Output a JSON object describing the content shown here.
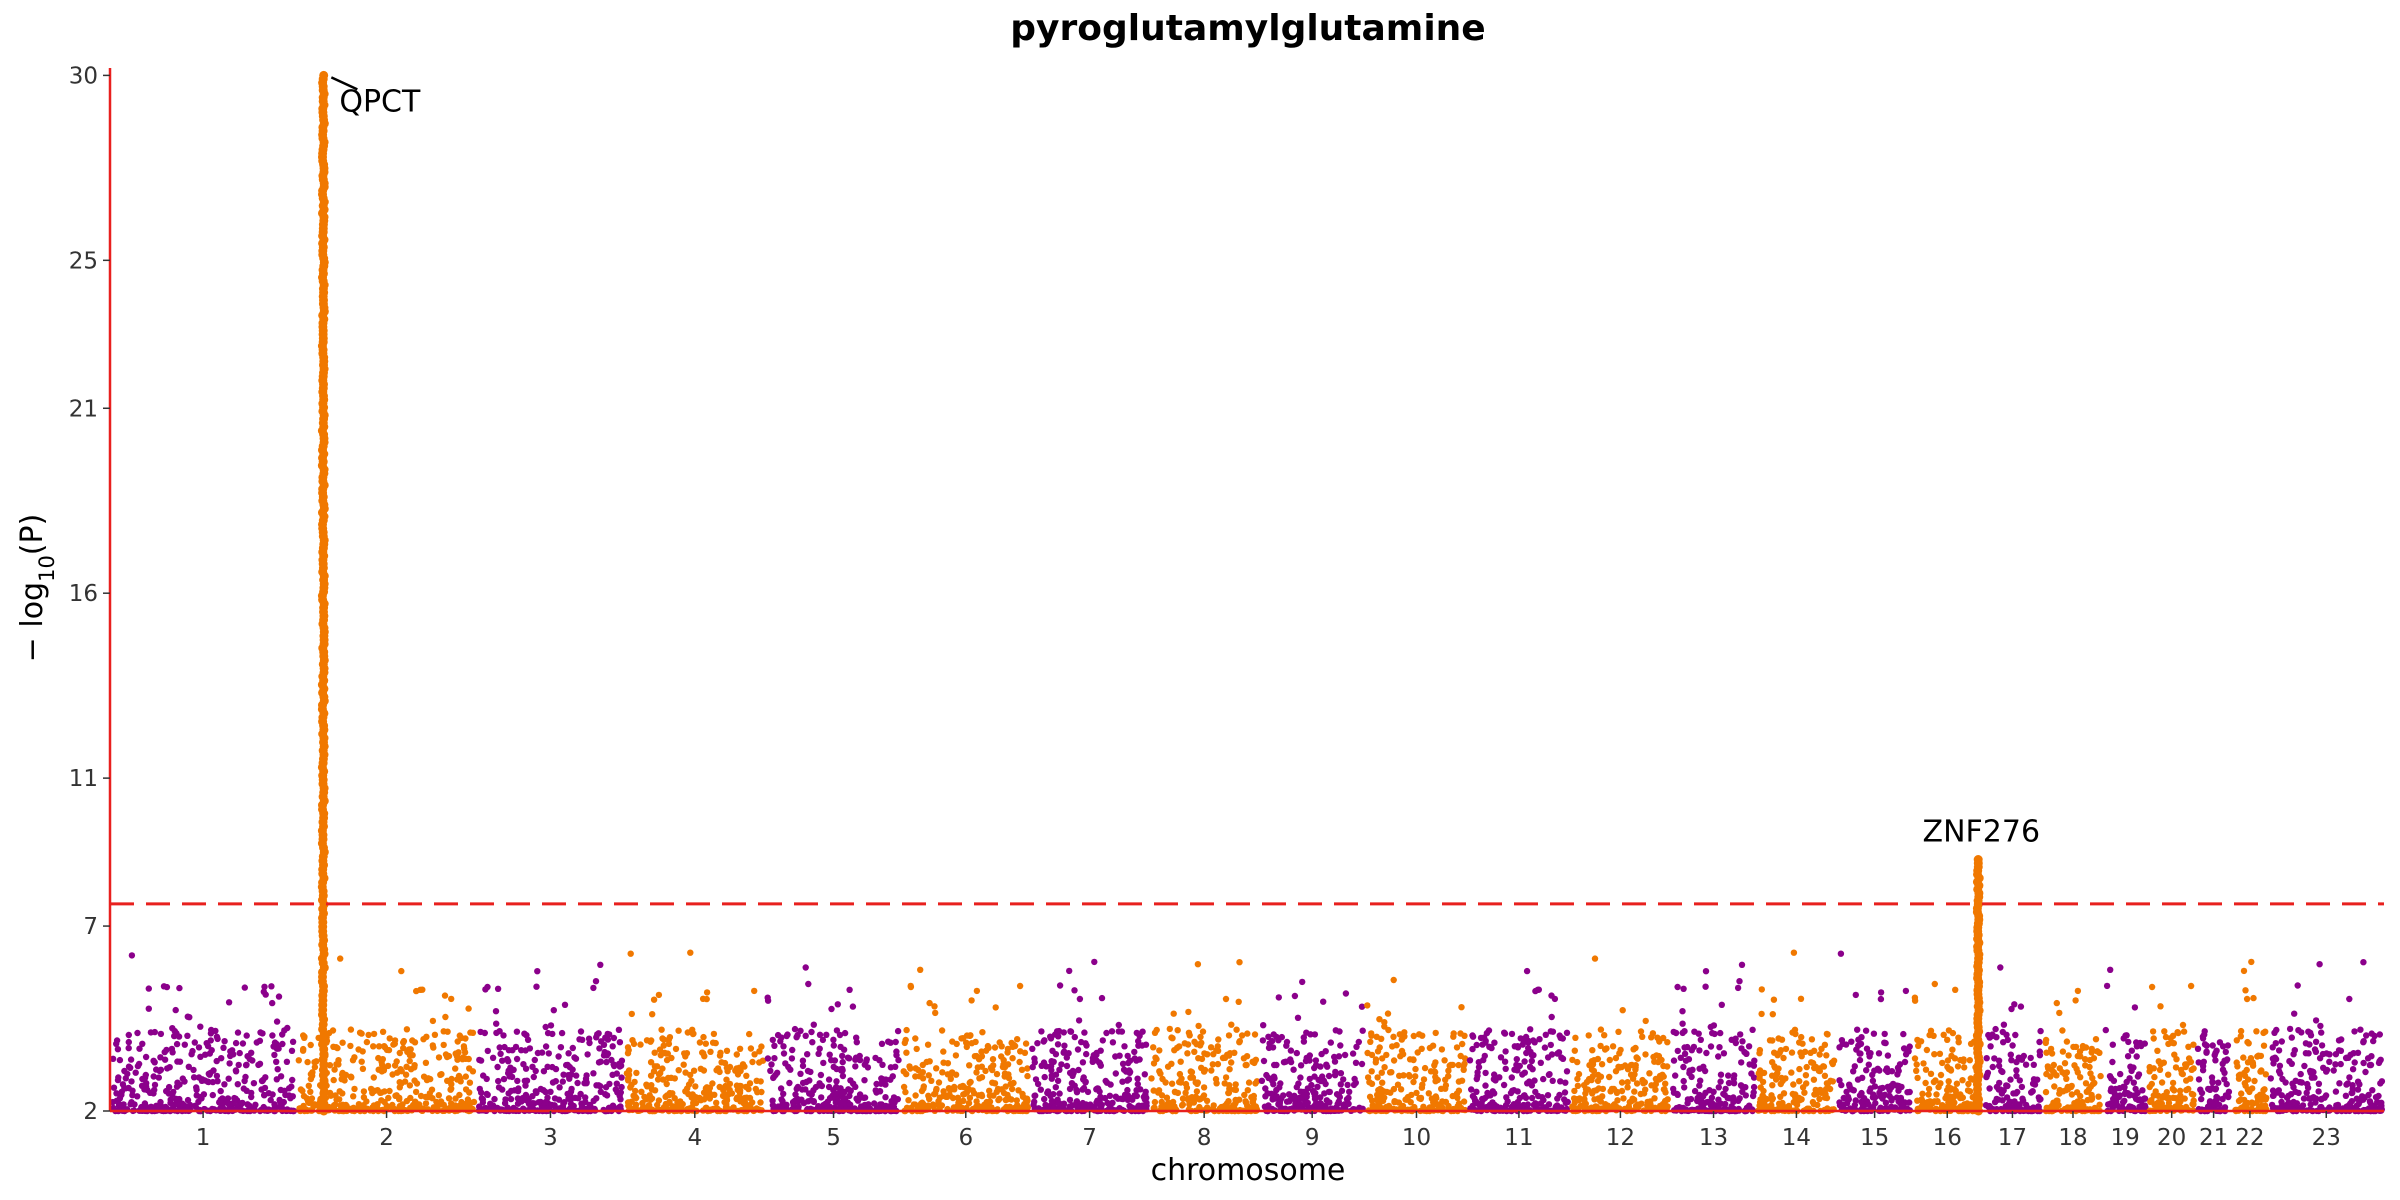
{
  "chart_data": {
    "type": "scatter",
    "subtype": "manhattan",
    "title": "pyroglutamylglutamine",
    "xlabel": "chromosome",
    "ylabel": "− log10(P)",
    "ylabel_main": "− log",
    "ylabel_sub": "10",
    "ylabel_var": "(P)",
    "yticks": [
      2,
      7,
      11,
      16,
      21,
      25,
      30
    ],
    "ytick_labels": [
      "2",
      "7",
      "11",
      "16",
      "21",
      "25",
      "30"
    ],
    "ylim": [
      2,
      30.2
    ],
    "significance_line": 7.6,
    "colors": {
      "odd": "#8B008B",
      "even": "#F07800",
      "threshold": "#E8201E",
      "axis": "#E8201E"
    },
    "chromosomes": [
      {
        "label": "1",
        "rel_length": 1.0
      },
      {
        "label": "2",
        "rel_length": 0.97
      },
      {
        "label": "3",
        "rel_length": 0.79
      },
      {
        "label": "4",
        "rel_length": 0.76
      },
      {
        "label": "5",
        "rel_length": 0.73
      },
      {
        "label": "6",
        "rel_length": 0.69
      },
      {
        "label": "7",
        "rel_length": 0.64
      },
      {
        "label": "8",
        "rel_length": 0.59
      },
      {
        "label": "9",
        "rel_length": 0.57
      },
      {
        "label": "10",
        "rel_length": 0.55
      },
      {
        "label": "11",
        "rel_length": 0.55
      },
      {
        "label": "12",
        "rel_length": 0.54
      },
      {
        "label": "13",
        "rel_length": 0.46
      },
      {
        "label": "14",
        "rel_length": 0.43
      },
      {
        "label": "15",
        "rel_length": 0.41
      },
      {
        "label": "16",
        "rel_length": 0.37
      },
      {
        "label": "17",
        "rel_length": 0.33
      },
      {
        "label": "18",
        "rel_length": 0.32
      },
      {
        "label": "19",
        "rel_length": 0.24
      },
      {
        "label": "20",
        "rel_length": 0.26
      },
      {
        "label": "21",
        "rel_length": 0.19
      },
      {
        "label": "22",
        "rel_length": 0.2
      },
      {
        "label": "23",
        "rel_length": 0.62
      }
    ],
    "peaks": [
      {
        "chrom": "2",
        "pos": 0.15,
        "max": 30.0
      },
      {
        "chrom": "16",
        "pos": 0.95,
        "max": 8.8
      }
    ],
    "annotations": [
      {
        "text": "QPCT",
        "chrom": "2",
        "pos": 0.15,
        "y": 30.0
      },
      {
        "text": "ZNF276",
        "chrom": "16",
        "pos": 0.95,
        "y": 8.8
      }
    ]
  }
}
